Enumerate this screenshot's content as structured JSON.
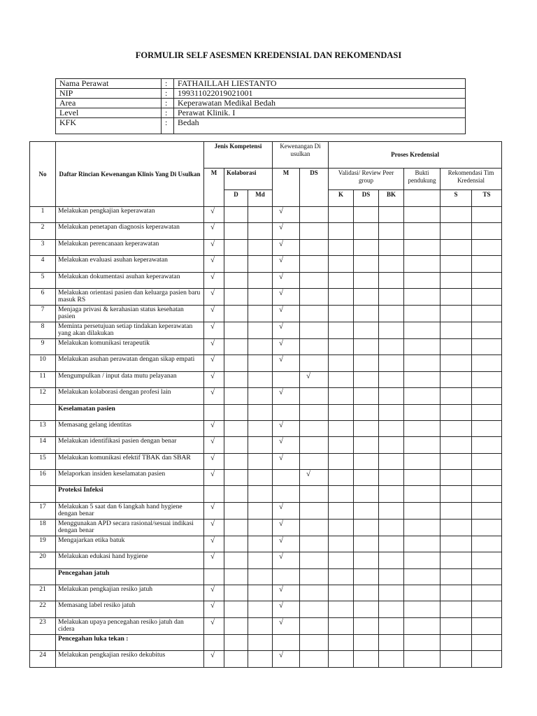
{
  "title": "FORMULIR SELF ASESMEN KREDENSIAL DAN REKOMENDASI",
  "identity": {
    "separator": ":",
    "rows": [
      {
        "label": "Nama Perawat",
        "value": "FATHAILLAH LIESTANTO"
      },
      {
        "label": "NIP",
        "value": "199311022019021001"
      },
      {
        "label": "Area",
        "value": "Keperawatan Medikal Bedah"
      },
      {
        "label": "Level",
        "value": "Perawat Klinik.  I"
      },
      {
        "label": "KFK",
        "value": "Bedah"
      }
    ]
  },
  "main_table": {
    "header": {
      "no": "No",
      "daftar": "Daftar Rincian Kewenangan Klinis Yang Di Usulkan",
      "jenis": "Jenis Kompetensi",
      "kewenangan": "Kewenangan Di usulkan",
      "proses": "Proses Kredensial",
      "jenis_m": "M",
      "kolaborasi": "Kolaborasi",
      "kew_m": "M",
      "kew_ds": "DS",
      "validasi": "Validasi/ Review Peer group",
      "bukti": "Bukti pendukung",
      "rekomendasi": "Rekomendasi Tim Kredensial",
      "d": "D",
      "md": "Md",
      "k": "K",
      "ds": "DS",
      "bk": "BK",
      "s": "S",
      "ts": "TS"
    },
    "rows": [
      {
        "no": "1",
        "text": "Melakukan pengkajian keperawatan",
        "m": "√",
        "kew_m": "√"
      },
      {
        "no": "2",
        "text": "Melakukan penetapan  diagnosis keperawatan",
        "m": "√",
        "kew_m": "√"
      },
      {
        "no": "3",
        "text": "Melakukan perencanaan keperawatan",
        "m": "√",
        "kew_m": "√"
      },
      {
        "no": "4",
        "text": "Melakukan evaluasi asuhan keperawatan",
        "m": "√",
        "kew_m": "√"
      },
      {
        "no": "5",
        "text": "Melakukan dokumentasi asuhan keperawatan",
        "m": "√",
        "kew_m": "√"
      },
      {
        "no": "6",
        "text": "Melakukan orientasi pasien dan keluarga pasien baru masuk RS",
        "m": "√",
        "kew_m": "√"
      },
      {
        "no": "7",
        "text": "Menjaga privasi & kerahasian status kesehatan pasien",
        "m": "√",
        "kew_m": "√"
      },
      {
        "no": "8",
        "text": "Meminta persetujuan setiap tindakan keperawatan yang akan dilakukan",
        "m": "√",
        "kew_m": "√"
      },
      {
        "no": "9",
        "text": "Melakukan komunikasi terapeutik",
        "m": "√",
        "kew_m": "√"
      },
      {
        "no": "10",
        "text": "Melakukan asuhan perawatan dengan sikap empati",
        "m": "√",
        "kew_m": "√"
      },
      {
        "no": "11",
        "text": "Mengumpulkan / input data mutu pelayanan",
        "m": "√",
        "kew_ds": "√"
      },
      {
        "no": "12",
        "text": "Melakukan kolaborasi dengan profesi lain",
        "m": "√",
        "kew_m": "√"
      },
      {
        "section": "Keselamatan pasien"
      },
      {
        "no": "13",
        "text": "Memasang gelang identitas",
        "m": "√",
        "kew_m": "√"
      },
      {
        "no": "14",
        "text": "Melakukan identifikasi pasien dengan benar",
        "m": "√",
        "kew_m": "√"
      },
      {
        "no": "15",
        "text": "Melakukan komunikasi efektif TBAK dan SBAR",
        "m": "√",
        "kew_m": "√"
      },
      {
        "no": "16",
        "text": "Melaporkan insiden keselamatan pasien",
        "m": "√",
        "kew_ds": "√"
      },
      {
        "section": "Proteksi Infeksi"
      },
      {
        "no": "17",
        "text": "Melakukan 5 saat dan 6 langkah hand hygiene dengan benar",
        "m": "√",
        "kew_m": "√"
      },
      {
        "no": "18",
        "text": "Menggunakan APD secara rasional/sesuai indikasi dengan benar",
        "m": "√",
        "kew_m": "√"
      },
      {
        "no": "19",
        "text": "Mengajarkan etika batuk",
        "m": "√",
        "kew_m": "√"
      },
      {
        "no": "20",
        "text": "Melakukan edukasi  hand hygiene",
        "m": "√",
        "kew_m": "√"
      },
      {
        "section": "Pencegahan jatuh"
      },
      {
        "no": "21",
        "text": "Melakukan pengkajian  resiko jatuh",
        "m": "√",
        "kew_m": "√"
      },
      {
        "no": "22",
        "text": "Memasang label resiko jatuh",
        "m": "√",
        "kew_m": "√"
      },
      {
        "no": "23",
        "text": "Melakukan upaya pencegahan resiko jatuh dan cidera",
        "m": "√",
        "kew_m": "√"
      },
      {
        "section": "Pencegahan luka tekan :"
      },
      {
        "no": "24",
        "text": "Melakukan pengkajian resiko dekubitus",
        "m": "√",
        "kew_m": "√"
      }
    ]
  }
}
